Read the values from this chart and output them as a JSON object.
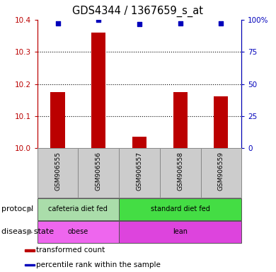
{
  "title": "GDS4344 / 1367659_s_at",
  "samples": [
    "GSM906555",
    "GSM906556",
    "GSM906557",
    "GSM906558",
    "GSM906559"
  ],
  "bar_values": [
    10.175,
    10.36,
    10.037,
    10.175,
    10.162
  ],
  "percentile_values": [
    97,
    100,
    96.5,
    97,
    97
  ],
  "ylim_left": [
    10.0,
    10.4
  ],
  "ylim_right": [
    0,
    100
  ],
  "yticks_left": [
    10.0,
    10.1,
    10.2,
    10.3,
    10.4
  ],
  "yticks_right": [
    0,
    25,
    50,
    75,
    100
  ],
  "bar_color": "#bb0000",
  "dot_color": "#0000bb",
  "protocol_groups": [
    {
      "label": "cafeteria diet fed",
      "start": 0,
      "end": 2,
      "color": "#aaddaa"
    },
    {
      "label": "standard diet fed",
      "start": 2,
      "end": 5,
      "color": "#44dd44"
    }
  ],
  "disease_groups": [
    {
      "label": "obese",
      "start": 0,
      "end": 2,
      "color": "#ee66ee"
    },
    {
      "label": "lean",
      "start": 2,
      "end": 5,
      "color": "#dd44dd"
    }
  ],
  "protocol_label": "protocol",
  "disease_label": "disease state",
  "legend_items": [
    {
      "label": "transformed count",
      "color": "#bb0000"
    },
    {
      "label": "percentile rank within the sample",
      "color": "#0000bb"
    }
  ],
  "sample_box_color": "#cccccc",
  "title_fontsize": 10.5
}
